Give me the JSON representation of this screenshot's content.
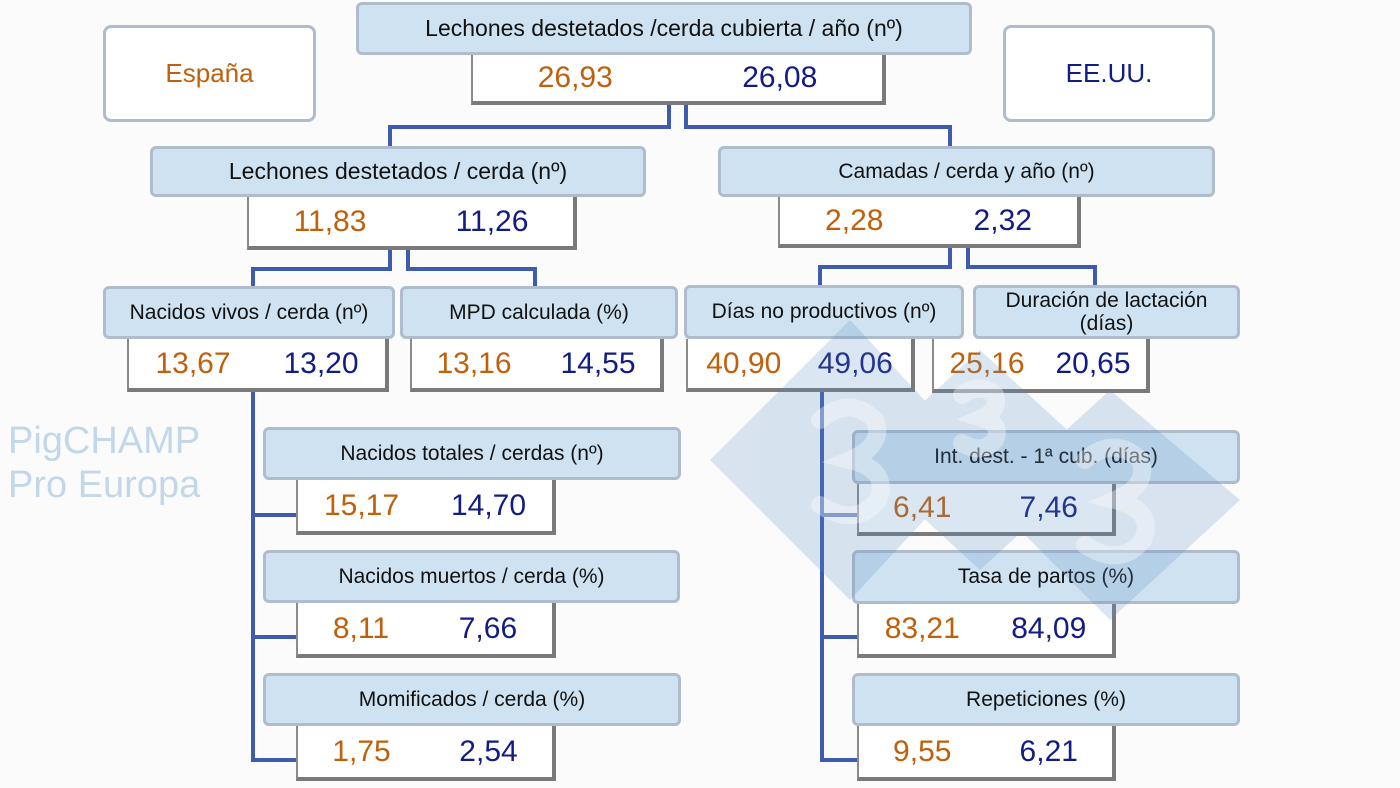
{
  "colors": {
    "spain": "#c0600a",
    "usa": "#111c84",
    "header_fill": "#cfe2f1",
    "connector": "#3e5bb0"
  },
  "legend": {
    "spain": "España",
    "usa": "EE.UU."
  },
  "watermark": "PigCHAMP Pro Europa",
  "logo": "3tres3",
  "nodes": {
    "root": {
      "label": "Lechones destetados /cerda cubierta / año (nº)",
      "spain": "26,93",
      "usa": "26,08"
    },
    "weaned": {
      "label": "Lechones destetados / cerda (nº)",
      "spain": "11,83",
      "usa": "11,26"
    },
    "litters": {
      "label": "Camadas / cerda y año (nº)",
      "spain": "2,28",
      "usa": "2,32"
    },
    "born_alive": {
      "label": "Nacidos vivos / cerda (nº)",
      "spain": "13,67",
      "usa": "13,20"
    },
    "mpd": {
      "label": "MPD calculada (%)",
      "spain": "13,16",
      "usa": "14,55"
    },
    "npd": {
      "label": "Días no productivos (nº)",
      "spain": "40,90",
      "usa": "49,06"
    },
    "lactation": {
      "label": "Duración de lactación (días)",
      "spain": "25,16",
      "usa": "20,65"
    },
    "total_born": {
      "label": "Nacidos totales / cerdas (nº)",
      "spain": "15,17",
      "usa": "14,70"
    },
    "stillborn": {
      "label": "Nacidos muertos / cerda (%)",
      "spain": "8,11",
      "usa": "7,66"
    },
    "mummified": {
      "label": "Momificados / cerda (%)",
      "spain": "1,75",
      "usa": "2,54"
    },
    "wean_service": {
      "label": "Int. dest. - 1ª cub. (días)",
      "spain": "6,41",
      "usa": "7,46"
    },
    "farrowing_rate": {
      "label": "Tasa de partos (%)",
      "spain": "83,21",
      "usa": "84,09"
    },
    "repeats": {
      "label": "Repeticiones (%)",
      "spain": "9,55",
      "usa": "6,21"
    }
  }
}
